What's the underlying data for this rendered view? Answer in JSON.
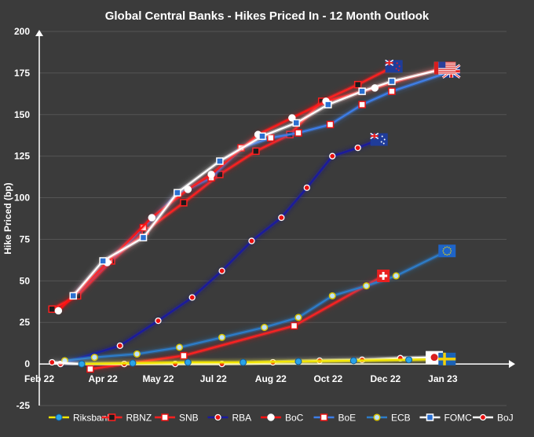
{
  "chart_data": {
    "type": "line",
    "title": "Global Central Banks - Hikes Priced In - 12 Month Outlook",
    "xlabel": "",
    "ylabel": "Hike Priced (bp)",
    "ylim": [
      -25,
      200
    ],
    "xlim": [
      0,
      11
    ],
    "yticks": [
      -25,
      0,
      25,
      50,
      75,
      100,
      125,
      150,
      175,
      200
    ],
    "xticks": [
      {
        "label": "Feb 22",
        "x": 0
      },
      {
        "label": "Apr 22",
        "x": 1.5
      },
      {
        "label": "May 22",
        "x": 2.8
      },
      {
        "label": "Jul 22",
        "x": 4.1
      },
      {
        "label": "Aug 22",
        "x": 5.45
      },
      {
        "label": "Oct 22",
        "x": 6.8
      },
      {
        "label": "Dec 22",
        "x": 8.15
      },
      {
        "label": "Jan 23",
        "x": 9.5
      }
    ],
    "series": [
      {
        "name": "Riksbank",
        "color": "#f2e600",
        "marker": "circle-blue",
        "flag": "se",
        "x": [
          1.0,
          2.2,
          3.5,
          4.8,
          6.1,
          7.4,
          8.7,
          9.6
        ],
        "y": [
          0,
          0.5,
          1,
          1,
          1.5,
          2,
          2.5,
          3
        ]
      },
      {
        "name": "RBNZ",
        "color": "#ff2020",
        "marker": "square-black-red",
        "flag": "nz",
        "x": [
          0.3,
          0.9,
          1.7,
          2.5,
          3.4,
          4.25,
          5.1,
          5.9,
          6.65,
          7.5,
          8.35
        ],
        "y": [
          33,
          41,
          62,
          80,
          97,
          114,
          128,
          138,
          158,
          168,
          179
        ]
      },
      {
        "name": "SNB",
        "color": "#ff2020",
        "marker": "square-white-red",
        "flag": "ch",
        "x": [
          1.2,
          3.4,
          6.0,
          8.1
        ],
        "y": [
          -3,
          5,
          23,
          53
        ]
      },
      {
        "name": "RBA",
        "color": "#1a1a9e",
        "marker": "circle-red-white",
        "flag": "au",
        "x": [
          0.5,
          1.9,
          2.8,
          3.6,
          4.3,
          5.0,
          5.7,
          6.3,
          6.9,
          7.5,
          8.0
        ],
        "y": [
          0,
          11,
          26,
          40,
          56,
          74,
          88,
          106,
          125,
          130,
          135
        ]
      },
      {
        "name": "BoC",
        "color": "#ff1010",
        "marker": "circle-white",
        "flag": "ca",
        "x": [
          0.45,
          1.6,
          2.65,
          3.5,
          4.05,
          5.15,
          5.95,
          6.75,
          7.9,
          9.5
        ],
        "y": [
          32,
          61,
          88,
          105,
          114,
          138,
          148,
          158,
          166,
          178
        ]
      },
      {
        "name": "BoE",
        "color": "#3d7ee8",
        "marker": "square-white-red",
        "flag": "uk",
        "x": [
          0.8,
          1.65,
          2.45,
          3.25,
          4.05,
          4.75,
          5.45,
          6.1,
          6.85,
          7.6,
          8.3,
          9.7
        ],
        "y": [
          41,
          62,
          82,
          102,
          112,
          130,
          136,
          139,
          144,
          156,
          164,
          176
        ]
      },
      {
        "name": "ECB",
        "color": "#2d7cc8",
        "marker": "circle-lightblue-yellow",
        "flag": "eu",
        "x": [
          0.6,
          1.3,
          2.3,
          3.3,
          4.3,
          5.3,
          6.1,
          6.9,
          7.7,
          8.4,
          9.6
        ],
        "y": [
          2,
          4,
          6,
          10,
          16,
          22,
          28,
          41,
          47,
          53,
          68
        ]
      },
      {
        "name": "FOMC",
        "color": "#ffffff",
        "marker": "square-blue-white",
        "flag": "us",
        "x": [
          0.8,
          1.5,
          2.45,
          3.25,
          4.25,
          5.25,
          6.05,
          6.8,
          7.6,
          8.3,
          9.6
        ],
        "y": [
          41,
          62,
          76,
          103,
          122,
          137,
          145,
          156,
          164,
          170,
          178
        ]
      },
      {
        "name": "BoJ",
        "color": "#ffffff",
        "marker": "circle-red-white",
        "flag": "jp",
        "x": [
          0.3,
          1.0,
          2.0,
          3.2,
          4.3,
          5.5,
          6.6,
          7.6,
          8.5,
          9.3
        ],
        "y": [
          1,
          0,
          0,
          0,
          0,
          1,
          2,
          2.5,
          3.5,
          4
        ]
      }
    ],
    "legend": {
      "position": "bottom",
      "items": [
        "Riksbank",
        "RBNZ",
        "SNB",
        "RBA",
        "BoC",
        "BoE",
        "ECB",
        "FOMC",
        "BoJ"
      ]
    }
  }
}
